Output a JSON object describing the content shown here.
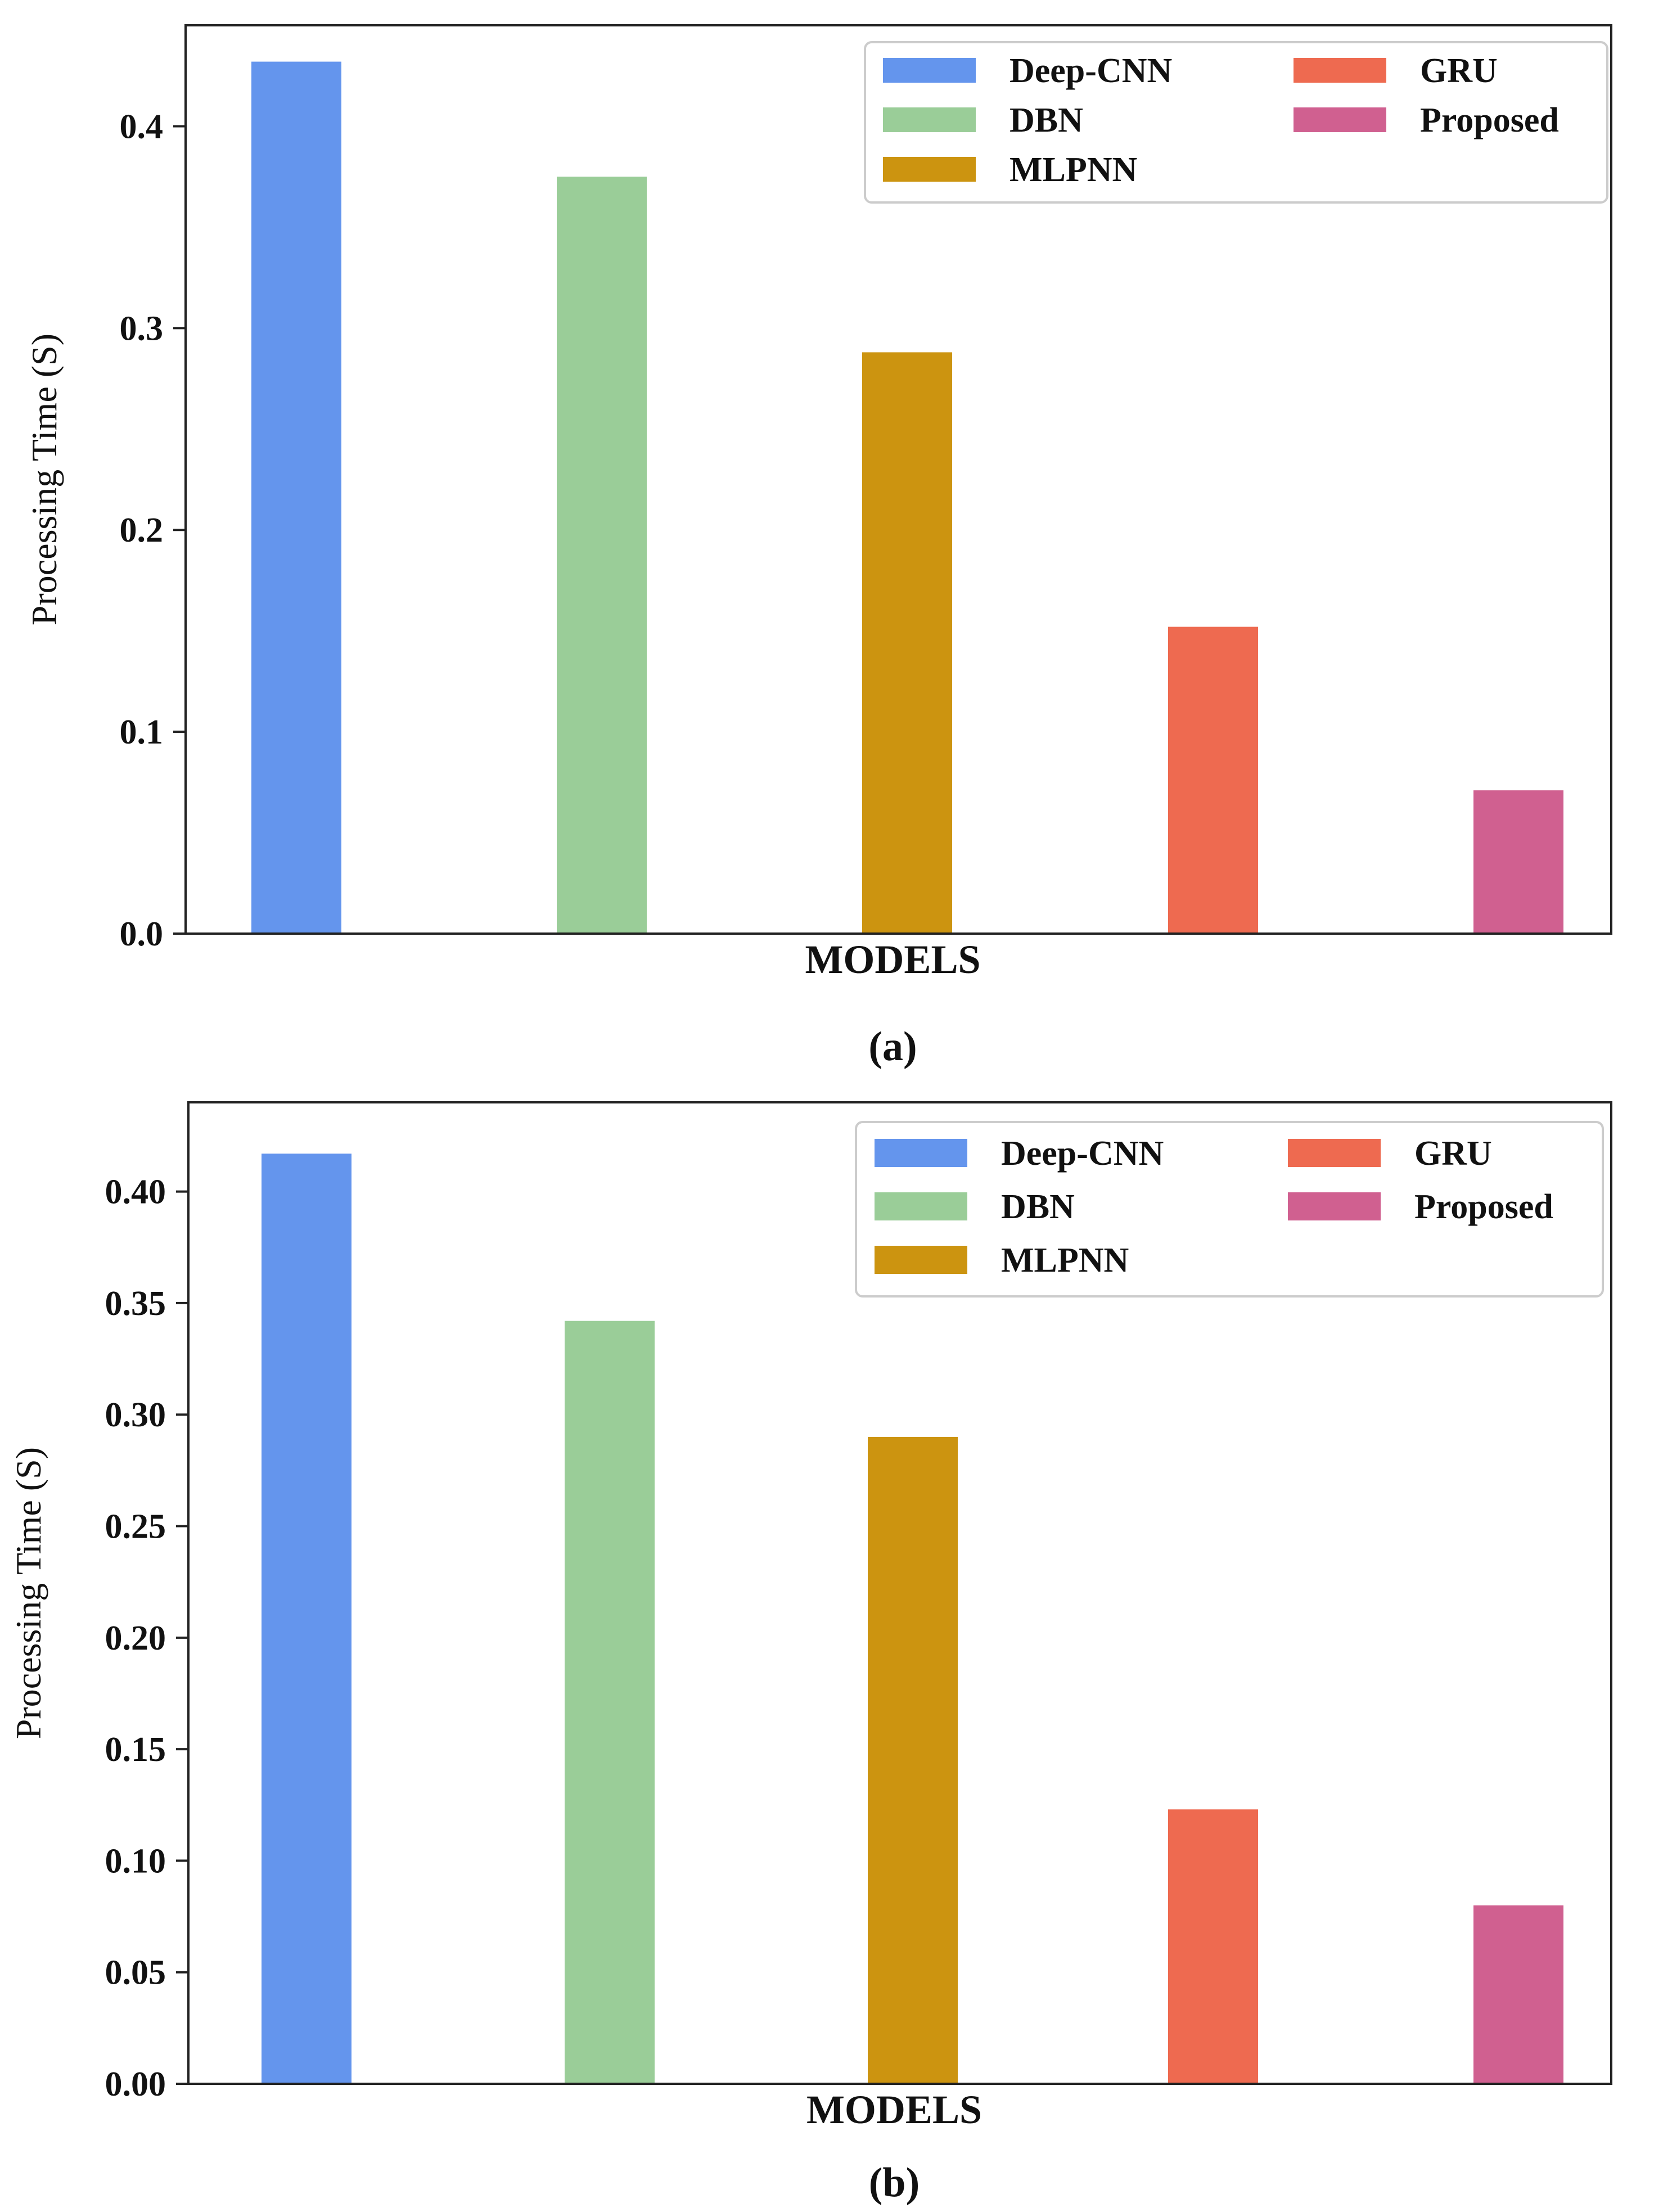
{
  "chart_data": [
    {
      "type": "bar",
      "panel": "a",
      "caption": "(a)",
      "categories": [
        "Deep-CNN",
        "DBN",
        "MLPNN",
        "GRU",
        "Proposed"
      ],
      "values": [
        0.432,
        0.375,
        0.288,
        0.152,
        0.071
      ],
      "colors": [
        "#6495ED",
        "#9ACD98",
        "#CC9410",
        "#EE6A50",
        "#D06090"
      ],
      "xlabel": "MODELS",
      "ylabel": "Processing Time (S)",
      "ylim": [
        0,
        0.45
      ],
      "yticks": [
        0.0,
        0.1,
        0.2,
        0.3,
        0.4
      ],
      "ytick_labels": [
        "0.0",
        "0.1",
        "0.2",
        "0.3",
        "0.4"
      ],
      "legend": {
        "position": "top-right",
        "entries": [
          "Deep-CNN",
          "DBN",
          "MLPNN",
          "GRU",
          "Proposed"
        ]
      },
      "grid": false
    },
    {
      "type": "bar",
      "panel": "b",
      "caption": "(b)",
      "categories": [
        "Deep-CNN",
        "DBN",
        "MLPNN",
        "GRU",
        "Proposed"
      ],
      "values": [
        0.417,
        0.342,
        0.29,
        0.123,
        0.08
      ],
      "colors": [
        "#6495ED",
        "#9ACD98",
        "#CC9410",
        "#EE6A50",
        "#D06090"
      ],
      "xlabel": "MODELS",
      "ylabel": "Processing Time (S)",
      "ylim": [
        0,
        0.44
      ],
      "yticks": [
        0.0,
        0.05,
        0.1,
        0.15,
        0.2,
        0.25,
        0.3,
        0.35,
        0.4
      ],
      "ytick_labels": [
        "0.00",
        "0.05",
        "0.10",
        "0.15",
        "0.20",
        "0.25",
        "0.30",
        "0.35",
        "0.40"
      ],
      "legend": {
        "position": "top-right",
        "entries": [
          "Deep-CNN",
          "DBN",
          "MLPNN",
          "GRU",
          "Proposed"
        ]
      },
      "grid": false
    }
  ]
}
